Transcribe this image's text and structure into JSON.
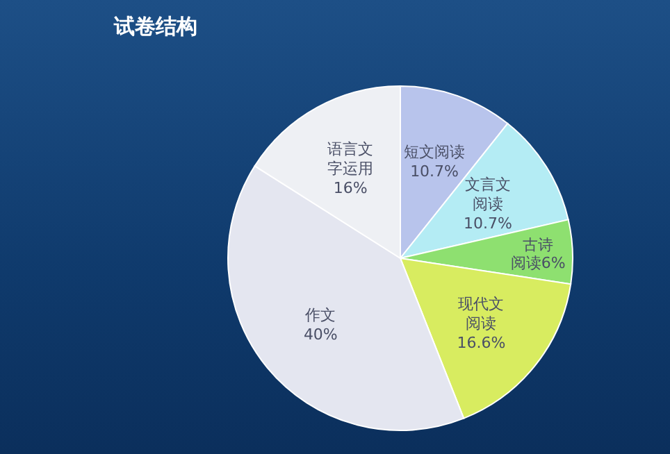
{
  "chart_data": {
    "type": "pie",
    "title": "试卷结构",
    "categories": [
      "短文阅读",
      "文言文阅读",
      "古诗阅读",
      "现代文阅读",
      "作文",
      "语言文字运用"
    ],
    "values": [
      10.7,
      10.7,
      6,
      16.6,
      40,
      16
    ],
    "value_labels": [
      "10.7%",
      "10.7%",
      "6%",
      "16.6%",
      "40%",
      "16%"
    ],
    "colors": [
      "#b8c4ec",
      "#b4ecf4",
      "#8ee070",
      "#d8ec60",
      "#e4e6f0",
      "#eef0f4"
    ]
  }
}
